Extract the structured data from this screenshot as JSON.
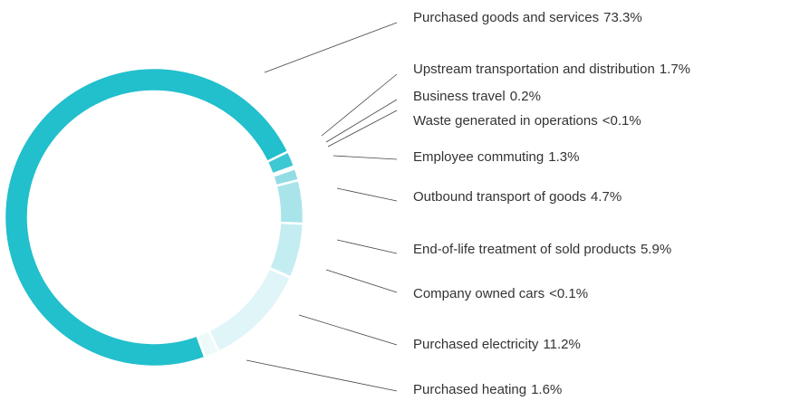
{
  "chart_data": {
    "type": "donut",
    "categories": [
      "Purchased goods and services",
      "Upstream transportation and distribution",
      "Business travel",
      "Waste generated in operations",
      "Employee commuting",
      "Outbound transport of goods",
      "End-of-life treatment of sold products",
      "Company owned cars",
      "Purchased electricity",
      "Purchased heating"
    ],
    "values": [
      73.3,
      1.7,
      0.2,
      0.05,
      1.3,
      4.7,
      5.9,
      0.05,
      11.2,
      1.6
    ],
    "value_labels": [
      "73.3%",
      "1.7%",
      "0.2%",
      "<0.1%",
      "1.3%",
      "4.7%",
      "5.9%",
      "<0.1%",
      "11.2%",
      "1.6%"
    ],
    "colors": [
      "#22bfcc",
      "#3ec8d3",
      "#5fd0d9",
      "#7fd9e0",
      "#92dde4",
      "#a9e4ea",
      "#c4edf1",
      "#d2f1f4",
      "#dff5f7",
      "#eef9fa"
    ]
  }
}
